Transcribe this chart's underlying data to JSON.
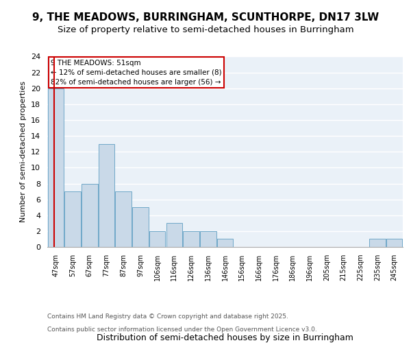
{
  "title_line1": "9, THE MEADOWS, BURRINGHAM, SCUNTHORPE, DN17 3LW",
  "title_line2": "Size of property relative to semi-detached houses in Burringham",
  "xlabel": "Distribution of semi-detached houses by size in Burringham",
  "ylabel": "Number of semi-detached properties",
  "footer_line1": "Contains HM Land Registry data © Crown copyright and database right 2025.",
  "footer_line2": "Contains public sector information licensed under the Open Government Licence v3.0.",
  "annotation_title": "9 THE MEADOWS: 51sqm",
  "annotation_line1": "← 12% of semi-detached houses are smaller (8)",
  "annotation_line2": "82% of semi-detached houses are larger (56) →",
  "bar_labels": [
    "47sqm",
    "57sqm",
    "67sqm",
    "77sqm",
    "87sqm",
    "97sqm",
    "106sqm",
    "116sqm",
    "126sqm",
    "136sqm",
    "146sqm",
    "156sqm",
    "166sqm",
    "176sqm",
    "186sqm",
    "196sqm",
    "205sqm",
    "215sqm",
    "225sqm",
    "235sqm",
    "245sqm"
  ],
  "bar_values": [
    20,
    7,
    8,
    13,
    7,
    5,
    2,
    3,
    2,
    2,
    1,
    0,
    0,
    0,
    0,
    0,
    0,
    0,
    0,
    1,
    1
  ],
  "bar_color": "#c9d9e8",
  "bar_edgecolor": "#6fa8c8",
  "vline_color": "#cc0000",
  "annotation_box_color": "#ffffff",
  "annotation_box_edgecolor": "#cc0000",
  "ylim": [
    0,
    24
  ],
  "yticks": [
    0,
    2,
    4,
    6,
    8,
    10,
    12,
    14,
    16,
    18,
    20,
    22,
    24
  ],
  "bg_color": "#eaf1f8",
  "grid_color": "#ffffff",
  "title_fontsize": 11,
  "subtitle_fontsize": 9.5,
  "footer_fontsize": 6.5
}
